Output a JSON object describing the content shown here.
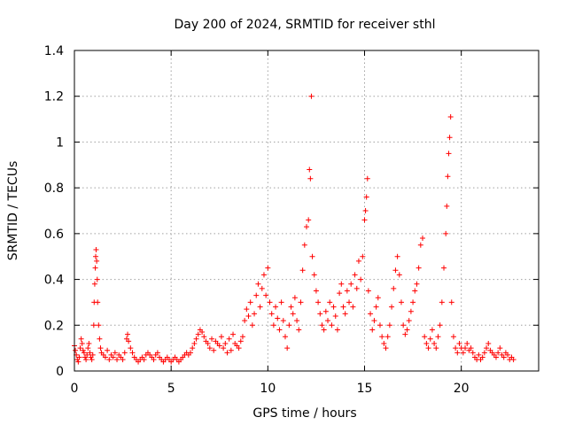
{
  "chart_data": {
    "type": "scatter",
    "title": "Day 200 of 2024, SRMTID for receiver sthl",
    "xlabel": "GPS time / hours",
    "ylabel": "SRMTID / TECUs",
    "xlim": [
      0,
      24
    ],
    "ylim": [
      0,
      1.4
    ],
    "grid": true,
    "marker": "+",
    "marker_color": "#ff0000",
    "x_ticks": [
      0,
      5,
      10,
      15,
      20
    ],
    "x_tick_labels": [
      "0",
      "5",
      "10",
      "15",
      "20"
    ],
    "y_ticks": [
      0,
      0.2,
      0.4,
      0.6,
      0.8,
      1.0,
      1.2,
      1.4
    ],
    "y_tick_labels": [
      "0",
      "0.2",
      "0.4",
      "0.6",
      "0.8",
      "1",
      "1.2",
      "1.4"
    ],
    "series": [
      {
        "name": "SRMTID",
        "points": [
          [
            0.0,
            0.11
          ],
          [
            0.05,
            0.09
          ],
          [
            0.1,
            0.07
          ],
          [
            0.15,
            0.05
          ],
          [
            0.2,
            0.04
          ],
          [
            0.25,
            0.06
          ],
          [
            0.3,
            0.1
          ],
          [
            0.35,
            0.14
          ],
          [
            0.4,
            0.12
          ],
          [
            0.45,
            0.09
          ],
          [
            0.5,
            0.08
          ],
          [
            0.55,
            0.06
          ],
          [
            0.6,
            0.05
          ],
          [
            0.65,
            0.07
          ],
          [
            0.7,
            0.1
          ],
          [
            0.75,
            0.12
          ],
          [
            0.8,
            0.08
          ],
          [
            0.85,
            0.06
          ],
          [
            0.9,
            0.05
          ],
          [
            0.95,
            0.07
          ],
          [
            1.0,
            0.2
          ],
          [
            1.02,
            0.3
          ],
          [
            1.05,
            0.38
          ],
          [
            1.08,
            0.45
          ],
          [
            1.1,
            0.5
          ],
          [
            1.12,
            0.53
          ],
          [
            1.15,
            0.48
          ],
          [
            1.18,
            0.4
          ],
          [
            1.2,
            0.3
          ],
          [
            1.25,
            0.2
          ],
          [
            1.3,
            0.14
          ],
          [
            1.35,
            0.1
          ],
          [
            1.4,
            0.08
          ],
          [
            1.5,
            0.07
          ],
          [
            1.6,
            0.06
          ],
          [
            1.7,
            0.09
          ],
          [
            1.8,
            0.05
          ],
          [
            1.9,
            0.07
          ],
          [
            2.0,
            0.06
          ],
          [
            2.1,
            0.08
          ],
          [
            2.2,
            0.05
          ],
          [
            2.3,
            0.07
          ],
          [
            2.4,
            0.06
          ],
          [
            2.5,
            0.05
          ],
          [
            2.6,
            0.08
          ],
          [
            2.7,
            0.14
          ],
          [
            2.75,
            0.16
          ],
          [
            2.8,
            0.13
          ],
          [
            2.9,
            0.1
          ],
          [
            3.0,
            0.08
          ],
          [
            3.1,
            0.06
          ],
          [
            3.2,
            0.05
          ],
          [
            3.3,
            0.04
          ],
          [
            3.4,
            0.05
          ],
          [
            3.5,
            0.06
          ],
          [
            3.6,
            0.05
          ],
          [
            3.7,
            0.07
          ],
          [
            3.8,
            0.08
          ],
          [
            3.9,
            0.07
          ],
          [
            4.0,
            0.06
          ],
          [
            4.1,
            0.05
          ],
          [
            4.2,
            0.07
          ],
          [
            4.3,
            0.08
          ],
          [
            4.4,
            0.06
          ],
          [
            4.5,
            0.05
          ],
          [
            4.6,
            0.04
          ],
          [
            4.7,
            0.05
          ],
          [
            4.8,
            0.06
          ],
          [
            4.9,
            0.05
          ],
          [
            5.0,
            0.04
          ],
          [
            5.1,
            0.05
          ],
          [
            5.2,
            0.06
          ],
          [
            5.3,
            0.05
          ],
          [
            5.4,
            0.04
          ],
          [
            5.5,
            0.05
          ],
          [
            5.6,
            0.06
          ],
          [
            5.7,
            0.07
          ],
          [
            5.8,
            0.08
          ],
          [
            5.9,
            0.07
          ],
          [
            6.0,
            0.08
          ],
          [
            6.1,
            0.1
          ],
          [
            6.2,
            0.12
          ],
          [
            6.3,
            0.14
          ],
          [
            6.4,
            0.16
          ],
          [
            6.5,
            0.18
          ],
          [
            6.6,
            0.17
          ],
          [
            6.7,
            0.15
          ],
          [
            6.8,
            0.13
          ],
          [
            6.9,
            0.12
          ],
          [
            7.0,
            0.1
          ],
          [
            7.1,
            0.14
          ],
          [
            7.2,
            0.09
          ],
          [
            7.3,
            0.13
          ],
          [
            7.4,
            0.12
          ],
          [
            7.5,
            0.11
          ],
          [
            7.6,
            0.15
          ],
          [
            7.7,
            0.1
          ],
          [
            7.8,
            0.12
          ],
          [
            7.9,
            0.08
          ],
          [
            8.0,
            0.14
          ],
          [
            8.1,
            0.09
          ],
          [
            8.2,
            0.16
          ],
          [
            8.3,
            0.12
          ],
          [
            8.4,
            0.11
          ],
          [
            8.5,
            0.1
          ],
          [
            8.6,
            0.13
          ],
          [
            8.7,
            0.15
          ],
          [
            8.8,
            0.22
          ],
          [
            8.9,
            0.27
          ],
          [
            9.0,
            0.24
          ],
          [
            9.1,
            0.3
          ],
          [
            9.2,
            0.2
          ],
          [
            9.3,
            0.25
          ],
          [
            9.4,
            0.33
          ],
          [
            9.5,
            0.38
          ],
          [
            9.6,
            0.28
          ],
          [
            9.7,
            0.36
          ],
          [
            9.8,
            0.42
          ],
          [
            9.9,
            0.33
          ],
          [
            10.0,
            0.45
          ],
          [
            10.1,
            0.3
          ],
          [
            10.2,
            0.25
          ],
          [
            10.3,
            0.2
          ],
          [
            10.4,
            0.28
          ],
          [
            10.5,
            0.23
          ],
          [
            10.6,
            0.18
          ],
          [
            10.7,
            0.3
          ],
          [
            10.8,
            0.22
          ],
          [
            10.9,
            0.15
          ],
          [
            11.0,
            0.1
          ],
          [
            11.1,
            0.2
          ],
          [
            11.2,
            0.28
          ],
          [
            11.3,
            0.25
          ],
          [
            11.4,
            0.32
          ],
          [
            11.5,
            0.22
          ],
          [
            11.6,
            0.18
          ],
          [
            11.7,
            0.3
          ],
          [
            11.8,
            0.44
          ],
          [
            11.9,
            0.55
          ],
          [
            12.0,
            0.63
          ],
          [
            12.1,
            0.66
          ],
          [
            12.15,
            0.88
          ],
          [
            12.2,
            0.84
          ],
          [
            12.25,
            1.2
          ],
          [
            12.3,
            0.5
          ],
          [
            12.4,
            0.42
          ],
          [
            12.5,
            0.35
          ],
          [
            12.6,
            0.3
          ],
          [
            12.7,
            0.25
          ],
          [
            12.8,
            0.2
          ],
          [
            12.9,
            0.18
          ],
          [
            13.0,
            0.26
          ],
          [
            13.1,
            0.22
          ],
          [
            13.2,
            0.3
          ],
          [
            13.3,
            0.2
          ],
          [
            13.4,
            0.28
          ],
          [
            13.5,
            0.24
          ],
          [
            13.6,
            0.18
          ],
          [
            13.7,
            0.34
          ],
          [
            13.8,
            0.38
          ],
          [
            13.9,
            0.28
          ],
          [
            14.0,
            0.25
          ],
          [
            14.1,
            0.35
          ],
          [
            14.2,
            0.3
          ],
          [
            14.3,
            0.38
          ],
          [
            14.4,
            0.28
          ],
          [
            14.5,
            0.42
          ],
          [
            14.6,
            0.36
          ],
          [
            14.7,
            0.48
          ],
          [
            14.8,
            0.4
          ],
          [
            14.9,
            0.5
          ],
          [
            15.0,
            0.66
          ],
          [
            15.05,
            0.7
          ],
          [
            15.1,
            0.76
          ],
          [
            15.15,
            0.84
          ],
          [
            15.2,
            0.35
          ],
          [
            15.3,
            0.25
          ],
          [
            15.4,
            0.18
          ],
          [
            15.5,
            0.22
          ],
          [
            15.6,
            0.28
          ],
          [
            15.7,
            0.32
          ],
          [
            15.8,
            0.2
          ],
          [
            15.9,
            0.15
          ],
          [
            16.0,
            0.12
          ],
          [
            16.1,
            0.1
          ],
          [
            16.2,
            0.15
          ],
          [
            16.3,
            0.2
          ],
          [
            16.4,
            0.28
          ],
          [
            16.5,
            0.36
          ],
          [
            16.6,
            0.44
          ],
          [
            16.7,
            0.5
          ],
          [
            16.8,
            0.42
          ],
          [
            16.9,
            0.3
          ],
          [
            17.0,
            0.2
          ],
          [
            17.1,
            0.16
          ],
          [
            17.2,
            0.18
          ],
          [
            17.3,
            0.22
          ],
          [
            17.4,
            0.26
          ],
          [
            17.5,
            0.3
          ],
          [
            17.6,
            0.35
          ],
          [
            17.7,
            0.38
          ],
          [
            17.8,
            0.45
          ],
          [
            17.9,
            0.55
          ],
          [
            18.0,
            0.58
          ],
          [
            18.1,
            0.15
          ],
          [
            18.2,
            0.12
          ],
          [
            18.3,
            0.1
          ],
          [
            18.4,
            0.14
          ],
          [
            18.5,
            0.18
          ],
          [
            18.6,
            0.12
          ],
          [
            18.7,
            0.1
          ],
          [
            18.8,
            0.15
          ],
          [
            18.9,
            0.2
          ],
          [
            19.0,
            0.3
          ],
          [
            19.1,
            0.45
          ],
          [
            19.2,
            0.6
          ],
          [
            19.25,
            0.72
          ],
          [
            19.3,
            0.85
          ],
          [
            19.35,
            0.95
          ],
          [
            19.4,
            1.02
          ],
          [
            19.45,
            1.11
          ],
          [
            19.5,
            0.3
          ],
          [
            19.6,
            0.15
          ],
          [
            19.7,
            0.1
          ],
          [
            19.8,
            0.08
          ],
          [
            19.9,
            0.12
          ],
          [
            20.0,
            0.1
          ],
          [
            20.1,
            0.08
          ],
          [
            20.2,
            0.1
          ],
          [
            20.3,
            0.12
          ],
          [
            20.4,
            0.09
          ],
          [
            20.5,
            0.1
          ],
          [
            20.6,
            0.08
          ],
          [
            20.7,
            0.06
          ],
          [
            20.8,
            0.05
          ],
          [
            20.9,
            0.07
          ],
          [
            21.0,
            0.05
          ],
          [
            21.1,
            0.06
          ],
          [
            21.2,
            0.08
          ],
          [
            21.3,
            0.1
          ],
          [
            21.4,
            0.12
          ],
          [
            21.5,
            0.09
          ],
          [
            21.6,
            0.08
          ],
          [
            21.7,
            0.07
          ],
          [
            21.8,
            0.06
          ],
          [
            21.9,
            0.08
          ],
          [
            22.0,
            0.1
          ],
          [
            22.1,
            0.07
          ],
          [
            22.2,
            0.06
          ],
          [
            22.3,
            0.08
          ],
          [
            22.4,
            0.07
          ],
          [
            22.5,
            0.05
          ],
          [
            22.6,
            0.06
          ],
          [
            22.7,
            0.05
          ]
        ]
      }
    ]
  }
}
